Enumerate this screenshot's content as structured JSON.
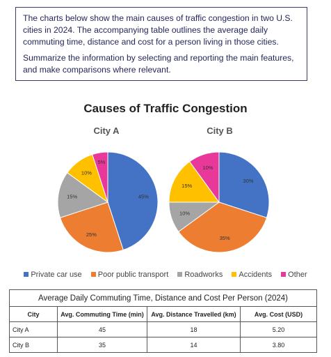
{
  "task": {
    "paragraph1": "The charts below show the main causes of traffic congestion in two U.S. cities in 2024. The accompanying table outlines the average daily commuting time, distance and cost for a person living in those cities.",
    "paragraph2": "Summarize the information by selecting and reporting the main features, and make comparisons where relevant."
  },
  "chart_data": {
    "type": "pie",
    "title": "Causes of Traffic Congestion",
    "categories": [
      "Private car use",
      "Poor public transport",
      "Roadworks",
      "Accidents",
      "Other"
    ],
    "colors": [
      "#4472c4",
      "#ed7d31",
      "#a5a5a5",
      "#ffc000",
      "#e8399a"
    ],
    "legend_position": "bottom",
    "pies": [
      {
        "name": "City A",
        "values": [
          45,
          25,
          15,
          10,
          5
        ],
        "labels": [
          "45%",
          "25%",
          "15%",
          "10%",
          "5%"
        ]
      },
      {
        "name": "City B",
        "values": [
          30,
          35,
          10,
          15,
          10
        ],
        "labels": [
          "30%",
          "35%",
          "10%",
          "15%",
          "10%"
        ]
      }
    ]
  },
  "table": {
    "caption": "Average Daily Commuting Time, Distance and Cost Per Person (2024)",
    "headers": [
      "City",
      "Avg. Commuting Time (min)",
      "Avg. Distance Travelled (km)",
      "Avg. Cost (USD)"
    ],
    "rows": [
      [
        "City A",
        "45",
        "18",
        "5.20"
      ],
      [
        "City B",
        "35",
        "14",
        "3.80"
      ]
    ]
  }
}
